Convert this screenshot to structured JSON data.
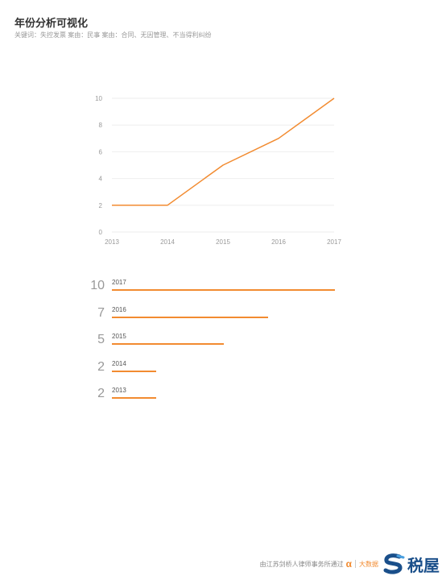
{
  "header": {
    "title": "年份分析可视化",
    "subtitle": "关键词：失控发票  案由：民事  案由：合同、无因管理、不当得利纠纷"
  },
  "chart_data": [
    {
      "type": "line",
      "x": [
        "2013",
        "2014",
        "2015",
        "2016",
        "2017"
      ],
      "series": [
        {
          "values": [
            2,
            2,
            5,
            7,
            10
          ]
        }
      ],
      "yticks": [
        "0",
        "2",
        "4",
        "6",
        "8",
        "10"
      ],
      "ylim": [
        0,
        10
      ],
      "grid": true,
      "color": "#f28b30"
    },
    {
      "type": "bar",
      "orientation": "horizontal",
      "categories": [
        "2017",
        "2016",
        "2015",
        "2014",
        "2013"
      ],
      "values": [
        10,
        7,
        5,
        2,
        2
      ],
      "max": 10,
      "color": "#f28b30"
    }
  ],
  "footer": {
    "credit": "由江苏剑桥人律师事务所通过",
    "alpha": "α",
    "data_label": "大数据",
    "brand": "税屋",
    "logo_icon": "s-logo-icon"
  }
}
